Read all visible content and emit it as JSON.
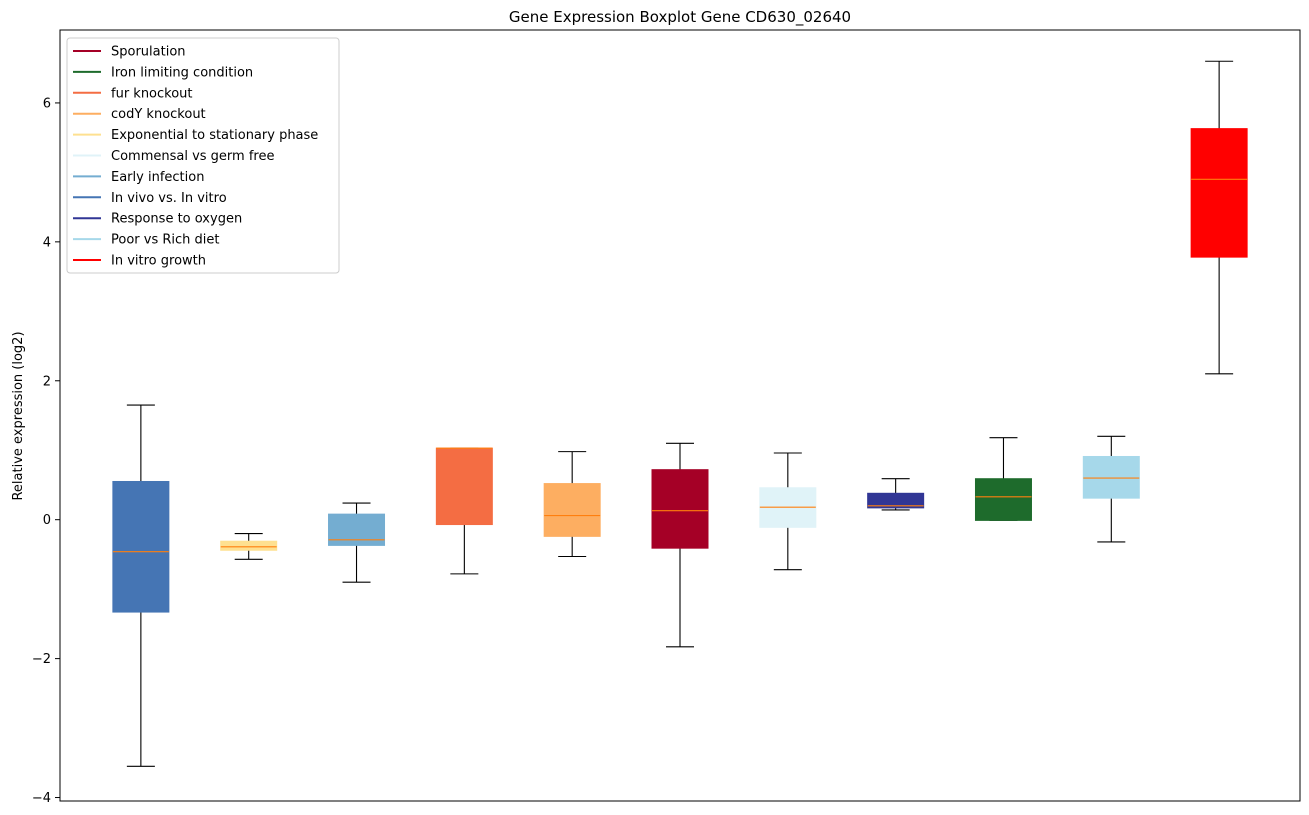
{
  "chart_data": {
    "type": "boxplot",
    "title": "Gene Expression Boxplot Gene CD630_02640",
    "xlabel": "",
    "ylabel": "Relative expression (log2)",
    "ylim": [
      -4.05,
      7.05
    ],
    "yticks": [
      {
        "value": -4,
        "label": "−4"
      },
      {
        "value": -2,
        "label": "−2"
      },
      {
        "value": 0,
        "label": "0"
      },
      {
        "value": 2,
        "label": "2"
      },
      {
        "value": 4,
        "label": "4"
      },
      {
        "value": 6,
        "label": "6"
      }
    ],
    "x_ticks_visible": false,
    "legend_position": "top-left",
    "median_color": "#ff7f0e",
    "legend": [
      {
        "label": "Sporulation",
        "color": "#a50026"
      },
      {
        "label": "Iron limiting condition",
        "color": "#1e6b2c"
      },
      {
        "label": "fur knockout",
        "color": "#f46d43"
      },
      {
        "label": "codY knockout",
        "color": "#fdae61"
      },
      {
        "label": "Exponential to stationary phase",
        "color": "#fee090"
      },
      {
        "label": "Commensal vs germ free",
        "color": "#e0f3f8"
      },
      {
        "label": "Early infection",
        "color": "#74add1"
      },
      {
        "label": "In vivo vs. In vitro",
        "color": "#4575b4"
      },
      {
        "label": "Response to oxygen",
        "color": "#313695"
      },
      {
        "label": "Poor vs Rich diet",
        "color": "#a6d8ea"
      },
      {
        "label": "In vitro growth",
        "color": "#ff0000"
      }
    ],
    "boxes": [
      {
        "condition": "In vivo vs. In vitro",
        "color": "#4575b4",
        "whisker_low": -3.55,
        "q1": -1.33,
        "median": -0.46,
        "q3": 0.55,
        "whisker_high": 1.65
      },
      {
        "condition": "Exponential to stationary phase",
        "color": "#fee090",
        "whisker_low": -0.57,
        "q1": -0.44,
        "median": -0.39,
        "q3": -0.31,
        "whisker_high": -0.2
      },
      {
        "condition": "Early infection",
        "color": "#74add1",
        "whisker_low": -0.9,
        "q1": -0.37,
        "median": -0.29,
        "q3": 0.08,
        "whisker_high": 0.24
      },
      {
        "condition": "fur knockout",
        "color": "#f46d43",
        "whisker_low": -0.78,
        "q1": -0.07,
        "median": 1.03,
        "q3": 1.03,
        "whisker_high": 1.03
      },
      {
        "condition": "codY knockout",
        "color": "#fdae61",
        "whisker_low": -0.53,
        "q1": -0.24,
        "median": 0.06,
        "q3": 0.52,
        "whisker_high": 0.98
      },
      {
        "condition": "Sporulation",
        "color": "#a50026",
        "whisker_low": -1.83,
        "q1": -0.41,
        "median": 0.13,
        "q3": 0.72,
        "whisker_high": 1.1
      },
      {
        "condition": "Commensal vs germ free",
        "color": "#e0f3f8",
        "whisker_low": -0.72,
        "q1": -0.11,
        "median": 0.18,
        "q3": 0.46,
        "whisker_high": 0.96
      },
      {
        "condition": "Response to oxygen",
        "color": "#313695",
        "whisker_low": 0.14,
        "q1": 0.17,
        "median": 0.2,
        "q3": 0.38,
        "whisker_high": 0.59
      },
      {
        "condition": "Iron limiting condition",
        "color": "#1e6b2c",
        "whisker_low": -0.01,
        "q1": -0.01,
        "median": 0.33,
        "q3": 0.59,
        "whisker_high": 1.18
      },
      {
        "condition": "Poor vs Rich diet",
        "color": "#a6d8ea",
        "whisker_low": -0.32,
        "q1": 0.31,
        "median": 0.6,
        "q3": 0.91,
        "whisker_high": 1.2
      },
      {
        "condition": "In vitro growth",
        "color": "#ff0000",
        "whisker_low": 2.1,
        "q1": 3.78,
        "median": 4.9,
        "q3": 5.63,
        "whisker_high": 6.6
      }
    ]
  }
}
